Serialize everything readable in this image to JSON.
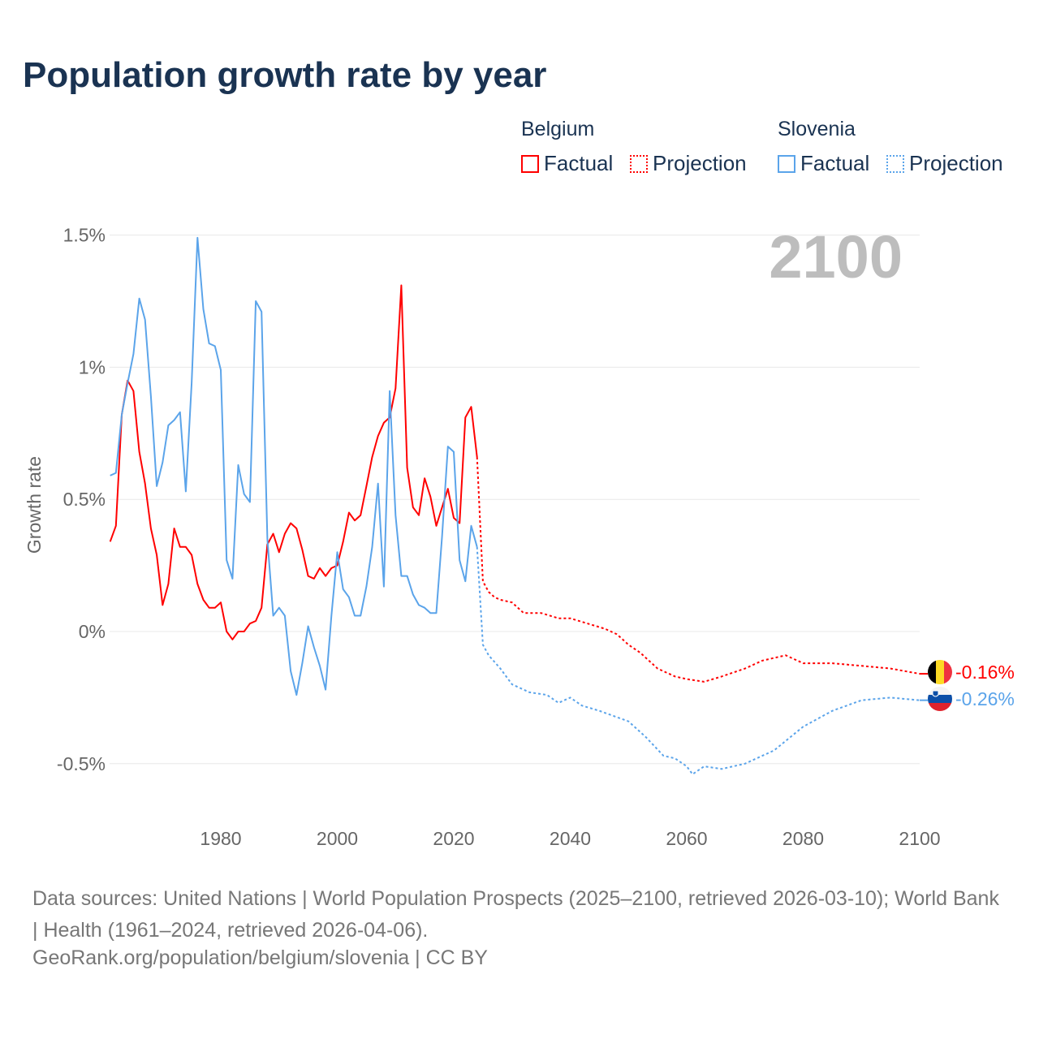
{
  "title": "Population growth rate by year",
  "legend": {
    "groups": [
      {
        "name": "Belgium",
        "color": "#ff0000",
        "factual": "Factual",
        "projection": "Projection"
      },
      {
        "name": "Slovenia",
        "color": "#5ba4ea",
        "factual": "Factual",
        "projection": "Projection"
      }
    ]
  },
  "footer": {
    "sources": "Data sources: United Nations | World Population Prospects (2025–2100, retrieved 2026-03-10); World Bank | Health (1961–2024, retrieved 2026-04-06).",
    "credit": "GeoRank.org/population/belgium/slovenia | CC BY"
  },
  "chart_data": {
    "type": "line",
    "title": "Population growth rate by year",
    "xlabel": "",
    "ylabel": "Growth rate",
    "xlim": [
      1961,
      2100
    ],
    "ylim": [
      -0.7,
      1.55
    ],
    "x_ticks": [
      1980,
      2000,
      2020,
      2040,
      2060,
      2080,
      2100
    ],
    "x_tick_labels": [
      "1980",
      "2000",
      "2020",
      "2040",
      "2060",
      "2080",
      "2100"
    ],
    "y_ticks": [
      -0.5,
      0,
      0.5,
      1,
      1.5
    ],
    "y_tick_labels": [
      "-0.5%",
      "0%",
      "0.5%",
      "1%",
      "1.5%"
    ],
    "grid": true,
    "year_label": "2100",
    "series": [
      {
        "name": "Belgium",
        "color": "#ff0000",
        "end_label": "-0.16%",
        "factual": {
          "x_start": 1961,
          "values": [
            0.34,
            0.4,
            0.82,
            0.95,
            0.91,
            0.68,
            0.56,
            0.39,
            0.29,
            0.1,
            0.18,
            0.39,
            0.32,
            0.32,
            0.29,
            0.18,
            0.12,
            0.09,
            0.09,
            0.11,
            0.0,
            -0.03,
            0.0,
            0.0,
            0.03,
            0.04,
            0.09,
            0.33,
            0.37,
            0.3,
            0.37,
            0.41,
            0.39,
            0.31,
            0.21,
            0.2,
            0.24,
            0.21,
            0.24,
            0.25,
            0.34,
            0.45,
            0.42,
            0.44,
            0.55,
            0.66,
            0.74,
            0.79,
            0.81,
            0.92,
            1.31,
            0.62,
            0.47,
            0.44,
            0.58,
            0.51,
            0.4,
            0.47,
            0.54,
            0.43,
            0.41,
            0.81,
            0.85,
            0.66
          ]
        },
        "projection": {
          "x": [
            2024,
            2025,
            2026,
            2027,
            2028,
            2030,
            2032,
            2035,
            2038,
            2040,
            2043,
            2046,
            2048,
            2050,
            2052,
            2055,
            2058,
            2060,
            2063,
            2066,
            2070,
            2073,
            2077,
            2080,
            2085,
            2090,
            2095,
            2100
          ],
          "values": [
            0.66,
            0.19,
            0.15,
            0.13,
            0.12,
            0.11,
            0.07,
            0.07,
            0.05,
            0.05,
            0.03,
            0.01,
            -0.01,
            -0.05,
            -0.08,
            -0.14,
            -0.17,
            -0.18,
            -0.19,
            -0.17,
            -0.14,
            -0.11,
            -0.09,
            -0.12,
            -0.12,
            -0.13,
            -0.14,
            -0.16
          ]
        }
      },
      {
        "name": "Slovenia",
        "color": "#5ba4ea",
        "end_label": "-0.26%",
        "factual": {
          "x_start": 1961,
          "values": [
            0.59,
            0.6,
            0.82,
            0.94,
            1.05,
            1.26,
            1.18,
            0.89,
            0.55,
            0.64,
            0.78,
            0.8,
            0.83,
            0.53,
            0.94,
            1.49,
            1.22,
            1.09,
            1.08,
            0.99,
            0.27,
            0.2,
            0.63,
            0.52,
            0.49,
            1.25,
            1.21,
            0.35,
            0.06,
            0.09,
            0.06,
            -0.15,
            -0.24,
            -0.12,
            0.02,
            -0.06,
            -0.13,
            -0.22,
            0.06,
            0.3,
            0.16,
            0.13,
            0.06,
            0.06,
            0.17,
            0.32,
            0.56,
            0.17,
            0.91,
            0.44,
            0.21,
            0.21,
            0.14,
            0.1,
            0.09,
            0.07,
            0.07,
            0.36,
            0.7,
            0.68,
            0.27,
            0.19,
            0.4,
            0.32
          ]
        },
        "projection": {
          "x": [
            2024,
            2025,
            2026,
            2028,
            2030,
            2033,
            2036,
            2038,
            2040,
            2042,
            2045,
            2050,
            2053,
            2056,
            2058,
            2060,
            2061,
            2063,
            2066,
            2070,
            2075,
            2080,
            2085,
            2090,
            2095,
            2100
          ],
          "values": [
            0.32,
            -0.05,
            -0.09,
            -0.14,
            -0.2,
            -0.23,
            -0.24,
            -0.27,
            -0.25,
            -0.28,
            -0.3,
            -0.34,
            -0.4,
            -0.47,
            -0.48,
            -0.51,
            -0.54,
            -0.51,
            -0.52,
            -0.5,
            -0.45,
            -0.36,
            -0.3,
            -0.26,
            -0.25,
            -0.26
          ]
        }
      }
    ]
  }
}
